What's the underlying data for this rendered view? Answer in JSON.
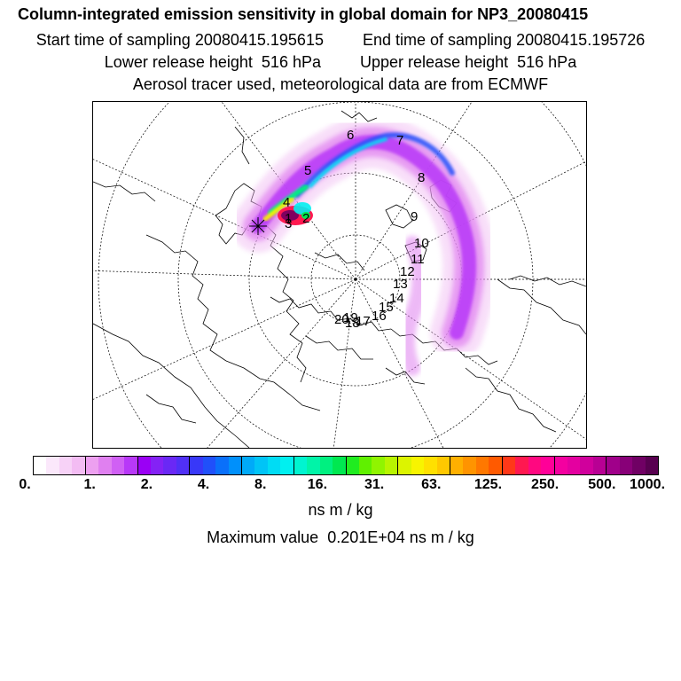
{
  "header": {
    "title": "Column-integrated emission sensitivity in global domain for NP3_20080415",
    "start_label": "Start time of sampling",
    "start_value": "20080415.195615",
    "end_label": "End time of sampling",
    "end_value": "20080415.195726",
    "lower_label": "Lower release height",
    "lower_value": "516 hPa",
    "upper_label": "Upper release height",
    "upper_value": "516 hPa",
    "info": "Aerosol tracer used, meteorological data are from ECMWF"
  },
  "map": {
    "day_labels": [
      "1",
      "2",
      "3",
      "4",
      "5",
      "6",
      "7",
      "8",
      "9",
      "10",
      "11",
      "12",
      "13",
      "14",
      "15",
      "16",
      "17",
      "18",
      "19",
      "20"
    ]
  },
  "colorbar": {
    "colors": [
      "#ffffff",
      "#fbe8fb",
      "#f7d2f7",
      "#f3bcf3",
      "#eda0f0",
      "#e080f0",
      "#d060f4",
      "#b838f8",
      "#9a00f5",
      "#8422f5",
      "#6a28f5",
      "#5030f6",
      "#3838f8",
      "#2050fa",
      "#0a70fa",
      "#0090fb",
      "#00aaf8",
      "#00c4f6",
      "#00dcf4",
      "#00f0f0",
      "#00f4d0",
      "#00f4a8",
      "#00f080",
      "#00e850",
      "#20ec20",
      "#60f000",
      "#90f400",
      "#b8f400",
      "#dcf400",
      "#f8f400",
      "#ffe000",
      "#ffc800",
      "#ffb000",
      "#ff9400",
      "#ff7800",
      "#ff5a00",
      "#ff3818",
      "#ff1850",
      "#ff0880",
      "#ff0098",
      "#f400a0",
      "#e400a0",
      "#d0009c",
      "#b80094",
      "#a0008a",
      "#880078",
      "#700064",
      "#580050"
    ],
    "tick_labels": [
      "0.",
      "1.",
      "2.",
      "4.",
      "8.",
      "16.",
      "31.",
      "63.",
      "125.",
      "250.",
      "500.",
      "1000."
    ],
    "units": "ns m / kg"
  },
  "max_label": "Maximum value",
  "max_value": "0.201E+04 ns m / kg"
}
